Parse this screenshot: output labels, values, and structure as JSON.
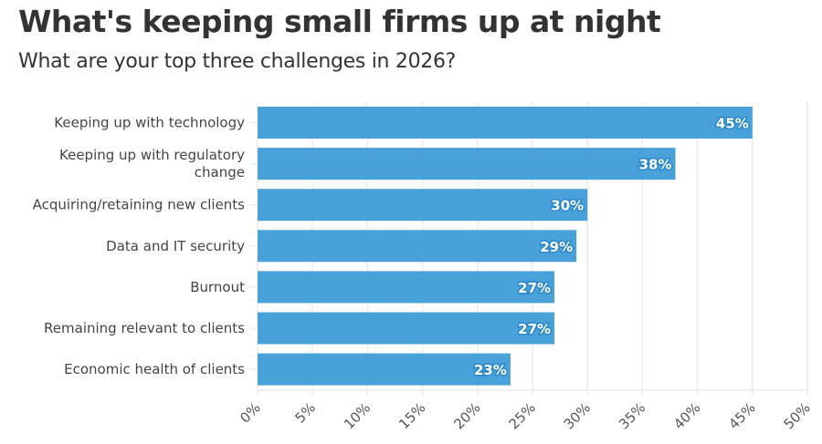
{
  "header": {
    "title": "What's keeping small firms up at night",
    "subtitle": "What are your top three challenges in 2026?"
  },
  "colors": {
    "bar": "#48a2d9",
    "grid": "#ebebeb",
    "label_outline": "#2b88c8"
  },
  "chart_data": {
    "type": "bar",
    "orientation": "horizontal",
    "title": "What's keeping small firms up at night",
    "subtitle": "What are your top three challenges in 2026?",
    "categories": [
      [
        "Keeping up with technology"
      ],
      [
        "Keeping up with regulatory",
        "change"
      ],
      [
        "Acquiring/retaining new clients"
      ],
      [
        "Data and IT security"
      ],
      [
        "Burnout"
      ],
      [
        "Remaining relevant to clients"
      ],
      [
        "Economic health of clients"
      ]
    ],
    "values": [
      45,
      38,
      30,
      29,
      27,
      27,
      23
    ],
    "value_labels": [
      "45%",
      "38%",
      "30%",
      "29%",
      "27%",
      "27%",
      "23%"
    ],
    "xlabel": "",
    "ylabel": "",
    "xlim": [
      0,
      50
    ],
    "xticks": [
      0,
      5,
      10,
      15,
      20,
      25,
      30,
      35,
      40,
      45,
      50
    ],
    "xtick_labels": [
      "0%",
      "5%",
      "10%",
      "15%",
      "20%",
      "25%",
      "30%",
      "35%",
      "40%",
      "45%",
      "50%"
    ],
    "grid": true,
    "legend": "none"
  }
}
